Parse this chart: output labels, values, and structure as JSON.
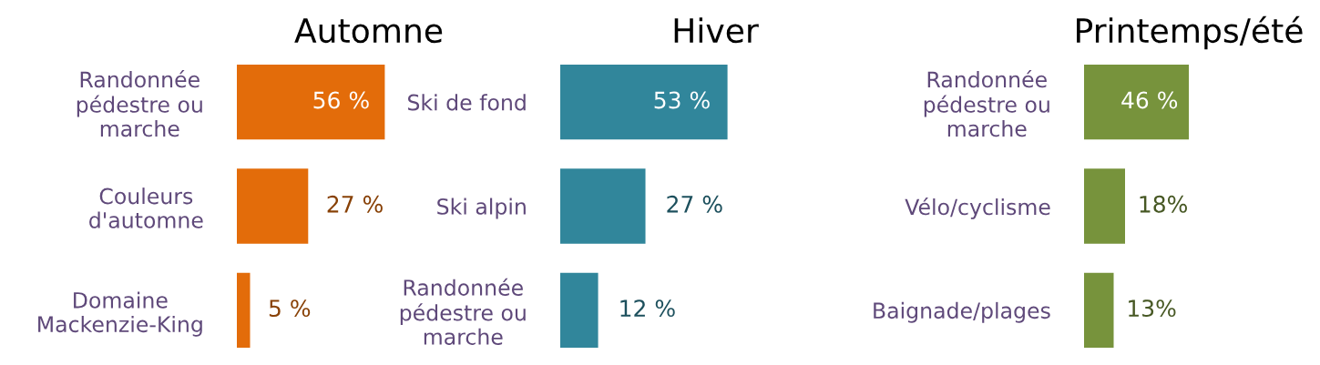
{
  "chart_data": [
    {
      "type": "bar",
      "orientation": "horizontal",
      "title": "Automne",
      "categories": [
        "Randonnée\npédestre ou\nmarche",
        "Couleurs\nd'automne",
        "Domaine\nMackenzie-King"
      ],
      "values": [
        56,
        27,
        5
      ],
      "value_labels": [
        "56 %",
        "27 %",
        "5 %"
      ],
      "color": "#e36c0a",
      "legend": false
    },
    {
      "type": "bar",
      "orientation": "horizontal",
      "title": "Hiver",
      "categories": [
        "Ski de fond",
        "Ski alpin",
        "Randonnée\npédestre ou\nmarche"
      ],
      "values": [
        53,
        27,
        12
      ],
      "value_labels": [
        "53 %",
        "27 %",
        "12 %"
      ],
      "color": "#31869b",
      "legend": false
    },
    {
      "type": "bar",
      "orientation": "horizontal",
      "title": "Printemps/été",
      "categories": [
        "Randonnée\npédestre ou\nmarche",
        "Vélo/cyclisme",
        "Baignade/plages"
      ],
      "values": [
        46,
        18,
        13
      ],
      "value_labels": [
        "46 %",
        "18%",
        "13%"
      ],
      "color": "#77933c",
      "legend": false
    }
  ]
}
